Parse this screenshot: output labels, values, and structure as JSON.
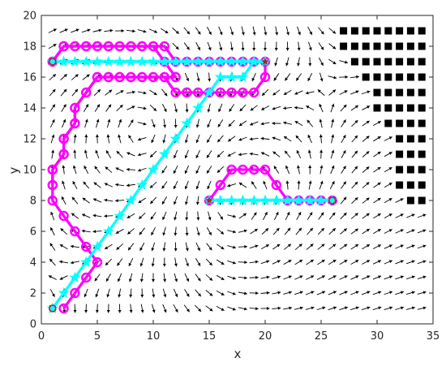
{
  "chart_data": {
    "type": "line",
    "title": "",
    "xlabel": "x",
    "ylabel": "y",
    "xlim": [
      0,
      35
    ],
    "ylim": [
      0,
      20
    ],
    "xticks": [
      0,
      5,
      10,
      15,
      20,
      25,
      30,
      35
    ],
    "yticks": [
      0,
      2,
      4,
      6,
      8,
      10,
      12,
      14,
      16,
      18,
      20
    ],
    "grid": false,
    "legend": "none",
    "colors": {
      "magenta_path": "#ff00ff",
      "cyan_path": "#00ffff",
      "endpoint_marker": "#b22222",
      "obstacle": "#000000",
      "quiver": "#000000",
      "axes": "#262626"
    },
    "series": [
      {
        "style": "magenta-circles",
        "x": [
          2,
          3,
          4,
          5,
          4,
          3,
          2,
          1,
          1,
          1,
          2,
          2,
          3,
          3,
          4,
          5,
          6,
          7,
          8,
          9,
          10,
          11,
          12,
          13,
          13,
          14,
          15,
          16,
          17,
          18,
          19,
          20,
          20,
          19,
          18,
          17,
          16,
          15,
          14,
          13,
          12,
          11,
          10,
          9,
          8,
          7,
          6,
          5,
          4,
          3,
          2,
          1
        ],
        "y": [
          1,
          2,
          3,
          4,
          5,
          6,
          7,
          8,
          9,
          10,
          11,
          12,
          13,
          14,
          15,
          16,
          16,
          16,
          16,
          16,
          16,
          16,
          15,
          15,
          15,
          15,
          15,
          15,
          15,
          15,
          15,
          16,
          17,
          17,
          17,
          17,
          17,
          17,
          17,
          17,
          17,
          18,
          18,
          18,
          18,
          18,
          18,
          18,
          18,
          18,
          18,
          17
        ]
      },
      {
        "style": "magenta-circles",
        "x": [
          1,
          2,
          3,
          4,
          5,
          6,
          7,
          8,
          9,
          10,
          11,
          12,
          12,
          11,
          10,
          9,
          8,
          7,
          6,
          5,
          4,
          3,
          3,
          2,
          2,
          1,
          1
        ],
        "y": [
          17,
          18,
          18,
          18,
          18,
          18,
          18,
          18,
          18,
          18,
          17,
          16,
          16,
          16,
          16,
          16,
          16,
          16,
          16,
          16,
          15,
          14,
          13,
          12,
          11,
          10,
          9
        ]
      },
      {
        "style": "magenta-circles",
        "x": [
          15,
          16,
          17,
          18,
          19,
          20,
          21,
          22,
          23,
          24,
          25,
          26
        ],
        "y": [
          8,
          9,
          10,
          10,
          10,
          10,
          9,
          8,
          8,
          8,
          8,
          8
        ]
      },
      {
        "style": "cyan-stars",
        "x": [
          1,
          2,
          3,
          4,
          5,
          6,
          7,
          8,
          9,
          10,
          11,
          12,
          13,
          14,
          15,
          16,
          17,
          18,
          19,
          20
        ],
        "y": [
          1,
          2,
          3,
          4,
          5,
          6,
          7,
          8,
          9,
          10,
          11,
          12,
          13,
          14,
          15,
          16,
          16,
          16,
          17,
          17
        ]
      },
      {
        "style": "cyan-stars",
        "x": [
          1,
          2,
          3,
          4,
          5,
          6,
          7,
          8,
          9,
          10,
          11,
          12,
          13,
          14,
          15,
          16,
          17,
          18,
          19,
          20
        ],
        "y": [
          17,
          17,
          17,
          17,
          17,
          17,
          17,
          17,
          17,
          17,
          17,
          17,
          17,
          17,
          17,
          17,
          17,
          17,
          17,
          17
        ]
      },
      {
        "style": "cyan-stars",
        "x": [
          15,
          16,
          17,
          18,
          19,
          20,
          21,
          22,
          23,
          24,
          25,
          26
        ],
        "y": [
          8,
          8,
          8,
          8,
          8,
          8,
          8,
          8,
          8,
          8,
          8,
          8
        ]
      }
    ],
    "endpoints": [
      {
        "x": 1,
        "y": 1,
        "marker": "circle"
      },
      {
        "x": 20,
        "y": 17,
        "marker": "star"
      },
      {
        "x": 1,
        "y": 17,
        "marker": "circle"
      },
      {
        "x": 15,
        "y": 8,
        "marker": "star"
      },
      {
        "x": 26,
        "y": 8,
        "marker": "circle"
      }
    ],
    "obstacles": [
      {
        "x": [
          27,
          34
        ],
        "y": [
          19,
          19
        ]
      },
      {
        "x": [
          27,
          34
        ],
        "y": [
          18,
          18
        ]
      },
      {
        "x": [
          28,
          34
        ],
        "y": [
          17,
          17
        ]
      },
      {
        "x": [
          29,
          34
        ],
        "y": [
          16,
          16
        ]
      },
      {
        "x": [
          30,
          34
        ],
        "y": [
          15,
          15
        ]
      },
      {
        "x": [
          30,
          34
        ],
        "y": [
          14,
          14
        ]
      },
      {
        "x": [
          31,
          34
        ],
        "y": [
          13,
          13
        ]
      },
      {
        "x": [
          32,
          34
        ],
        "y": [
          12,
          12
        ]
      },
      {
        "x": [
          32,
          34
        ],
        "y": [
          11,
          11
        ]
      },
      {
        "x": [
          32,
          34
        ],
        "y": [
          10,
          10
        ]
      },
      {
        "x": [
          32,
          34
        ],
        "y": [
          9,
          9
        ]
      },
      {
        "x": [
          33,
          34
        ],
        "y": [
          8,
          8
        ]
      }
    ],
    "vector_field": {
      "vortices": [
        {
          "x": 9,
          "y": 12.5,
          "rotation": "clockwise",
          "strength": 0.9
        },
        {
          "x": 17,
          "y": 8,
          "rotation": "counterclockwise",
          "strength": 0.8
        }
      ],
      "uniform_flow": [
        0.35,
        0.0
      ]
    }
  }
}
